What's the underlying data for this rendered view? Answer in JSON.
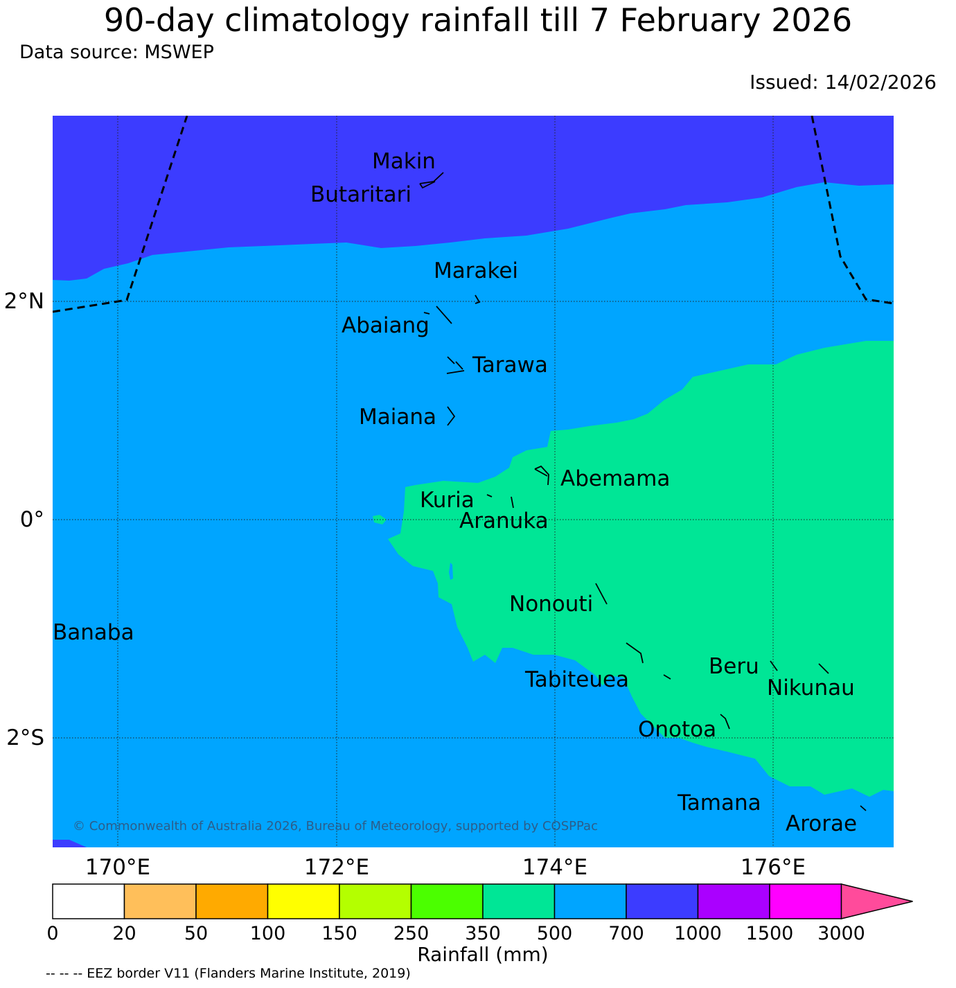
{
  "title": "90-day climatology rainfall till 7 February 2026",
  "data_source": "Data source: MSWEP",
  "issued": "Issued: 14/02/2026",
  "copyright": "© Commonwealth of Australia 2026, Bureau of Meteorology, supported by COSPPac",
  "eez_note": "-- -- -- EEZ border V11 (Flanders Marine Institute, 2019)",
  "axes": {
    "lon_ticks": [
      "170°E",
      "172°E",
      "174°E",
      "176°E"
    ],
    "lat_ticks": [
      "2°N",
      "0°",
      "2°S"
    ]
  },
  "islands": [
    "Makin",
    "Butaritari",
    "Marakei",
    "Abaiang",
    "Tarawa",
    "Maiana",
    "Abemama",
    "Kuria",
    "Aranuka",
    "Nonouti",
    "Banaba",
    "Beru",
    "Tabiteuea",
    "Nikunau",
    "Onotoa",
    "Tamana",
    "Arorae"
  ],
  "colorbar": {
    "label": "Rainfall (mm)",
    "ticks": [
      "0",
      "20",
      "50",
      "100",
      "150",
      "250",
      "350",
      "500",
      "700",
      "1000",
      "1500",
      "3000"
    ],
    "colors": [
      "#ffffff",
      "#ffbf5a",
      "#ffaa00",
      "#ffff00",
      "#b4ff00",
      "#4bff00",
      "#00e696",
      "#00a5ff",
      "#3c3cff",
      "#aa00ff",
      "#ff00ff",
      "#ff4b9b"
    ]
  },
  "map_colors": {
    "band_700_1000": "#3c3cff",
    "band_500_700": "#00a5ff",
    "band_350_500": "#00e696"
  }
}
